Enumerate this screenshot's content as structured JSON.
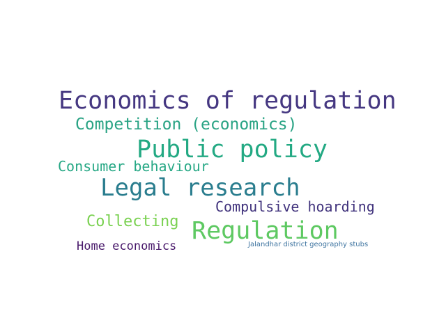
{
  "words": [
    {
      "text": "Economics of regulation",
      "color": "#453781"
    },
    {
      "text": "Competition (economics)",
      "color": "#29a384"
    },
    {
      "text": "Public policy",
      "color": "#23a983"
    },
    {
      "text": "Consumer behaviour",
      "color": "#27a885"
    },
    {
      "text": "Legal research",
      "color": "#2a7d8e"
    },
    {
      "text": "Compulsive hoarding",
      "color": "#40327c"
    },
    {
      "text": "Collecting",
      "color": "#7ad151"
    },
    {
      "text": "Regulation",
      "color": "#5ec962"
    },
    {
      "text": "Home economics",
      "color": "#48186a"
    },
    {
      "text": "Jalandhar district geography stubs",
      "color": "#3e74a0"
    }
  ]
}
